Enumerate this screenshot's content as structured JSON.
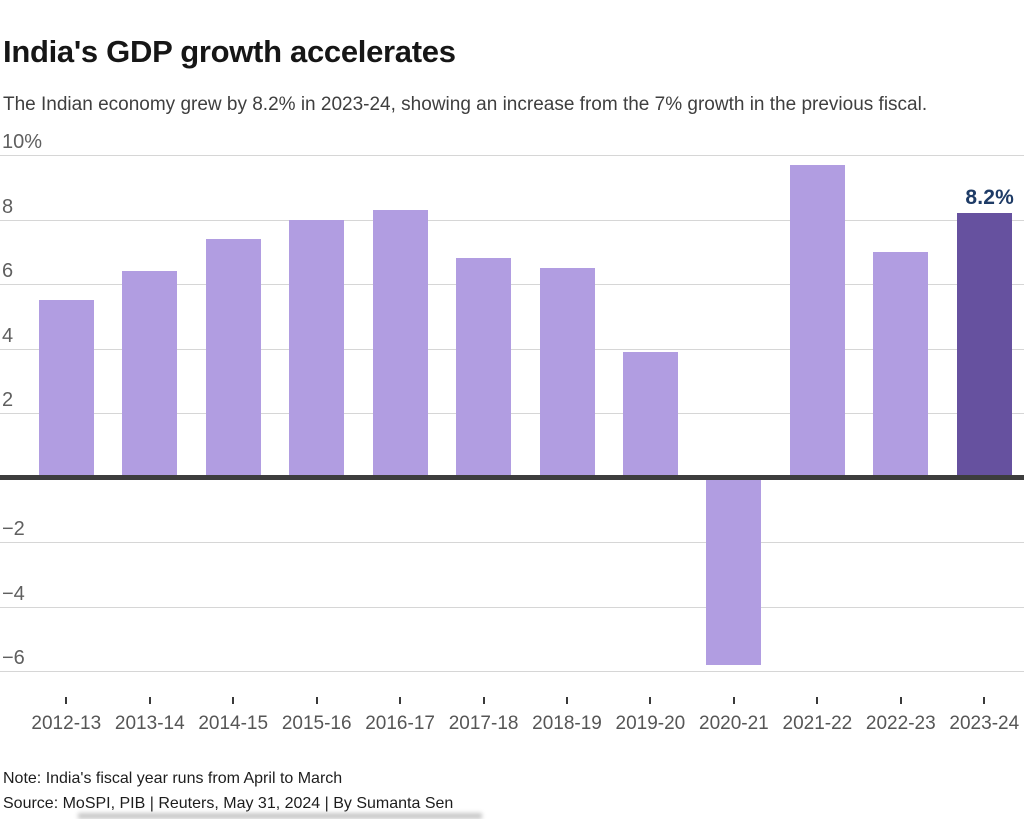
{
  "header": {
    "title": "India's GDP growth accelerates",
    "subtitle": "The Indian economy grew by 8.2% in 2023-24, showing an increase from the 7% growth in the previous fiscal."
  },
  "chart_data": {
    "type": "bar",
    "title": "India's GDP growth accelerates",
    "subtitle": "The Indian economy grew by 8.2% in 2023-24, showing an increase from the 7% growth in the previous fiscal.",
    "categories": [
      "2012-13",
      "2013-14",
      "2014-15",
      "2015-16",
      "2016-17",
      "2017-18",
      "2018-19",
      "2019-20",
      "2020-21",
      "2021-22",
      "2022-23",
      "2023-24"
    ],
    "values": [
      5.5,
      6.4,
      7.4,
      8.0,
      8.3,
      6.8,
      6.5,
      3.9,
      -5.8,
      9.7,
      7.0,
      8.2
    ],
    "unit": "%",
    "xlabel": "",
    "ylabel": "",
    "ylim": [
      -6.8,
      10.5
    ],
    "yticks": [
      {
        "value": 10,
        "label": "10%"
      },
      {
        "value": 8,
        "label": "8"
      },
      {
        "value": 6,
        "label": "6"
      },
      {
        "value": 4,
        "label": "4"
      },
      {
        "value": 2,
        "label": "2"
      },
      {
        "value": -2,
        "label": "−2"
      },
      {
        "value": -4,
        "label": "−4"
      },
      {
        "value": -6,
        "label": "−6"
      }
    ],
    "grid": true,
    "zero_baseline": true,
    "legend": false,
    "bar_color": "#b19de1",
    "highlight_color": "#66519f",
    "highlight_index": 11,
    "gridline_color": "#d6d6d6",
    "zero_line_color": "#3d3d3d",
    "annotation": {
      "text": "8.2%",
      "color": "#1e3b66",
      "target": "2023-24"
    }
  },
  "footer": {
    "note": "Note: India's fiscal year runs from April to March",
    "source": "Source: MoSPI, PIB | Reuters, May 31, 2024 | By Sumanta Sen"
  }
}
